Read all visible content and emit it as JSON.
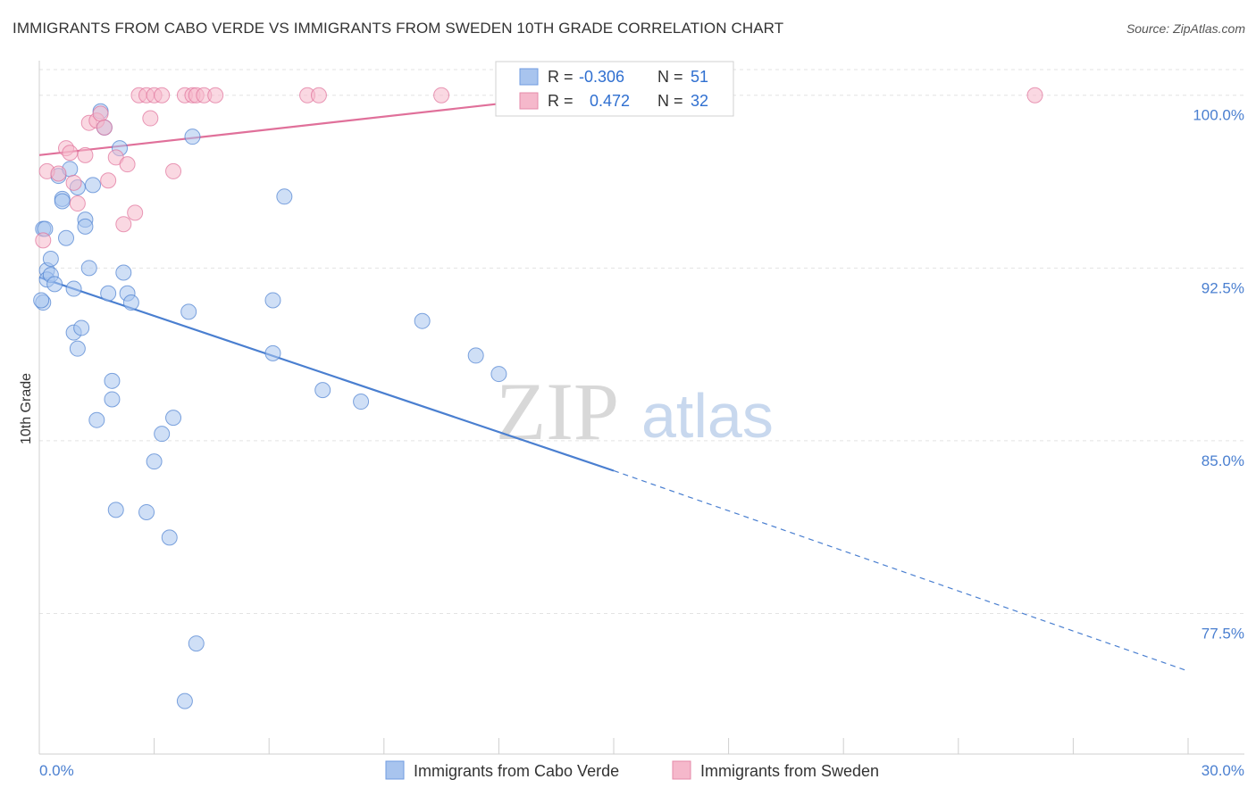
{
  "title": "IMMIGRANTS FROM CABO VERDE VS IMMIGRANTS FROM SWEDEN 10TH GRADE CORRELATION CHART",
  "source": "Source: ZipAtlas.com",
  "watermark": {
    "zip": "ZIP",
    "atlas": "atlas"
  },
  "legend_box": {
    "rows": [
      {
        "r_label": "R =",
        "r_value": "-0.306",
        "n_label": "N =",
        "n_value": "51",
        "color": "#a8c4ee"
      },
      {
        "r_label": "R =",
        "r_value": "0.472",
        "n_label": "N =",
        "n_value": "32",
        "color": "#f5b8cb"
      }
    ]
  },
  "bottom_legend": [
    {
      "label": "Immigrants from Cabo Verde",
      "color": "#a8c4ee"
    },
    {
      "label": "Immigrants from Sweden",
      "color": "#f5b8cb"
    }
  ],
  "chart_data": {
    "type": "scatter",
    "title": "IMMIGRANTS FROM CABO VERDE VS IMMIGRANTS FROM SWEDEN 10TH GRADE CORRELATION CHART",
    "xlabel": "",
    "ylabel": "10th Grade",
    "xlim": [
      0.0,
      30.0
    ],
    "ylim": [
      71.4,
      101.5
    ],
    "x_tick_labels": [
      "0.0%",
      "30.0%"
    ],
    "y_ticks": [
      77.5,
      85.0,
      92.5,
      100.0
    ],
    "y_tick_labels": [
      "77.5%",
      "85.0%",
      "92.5%",
      "100.0%"
    ],
    "grid": true,
    "legend_position": "top-center",
    "series": [
      {
        "name": "Immigrants from Cabo Verde",
        "color": "#4a7fd0",
        "fill": "#a8c4ee",
        "points": [
          [
            0.1,
            94.2
          ],
          [
            0.1,
            91.0
          ],
          [
            0.2,
            92.4
          ],
          [
            0.2,
            92.0
          ],
          [
            0.3,
            92.9
          ],
          [
            0.3,
            92.2
          ],
          [
            0.4,
            91.8
          ],
          [
            0.5,
            96.5
          ],
          [
            0.6,
            95.5
          ],
          [
            0.6,
            95.4
          ],
          [
            0.7,
            93.8
          ],
          [
            0.8,
            96.8
          ],
          [
            0.9,
            91.6
          ],
          [
            1.0,
            96.0
          ],
          [
            0.9,
            89.7
          ],
          [
            1.0,
            89.0
          ],
          [
            1.1,
            89.9
          ],
          [
            1.2,
            94.6
          ],
          [
            1.2,
            94.3
          ],
          [
            1.3,
            92.5
          ],
          [
            1.4,
            96.1
          ],
          [
            1.5,
            85.9
          ],
          [
            1.6,
            99.3
          ],
          [
            1.7,
            98.6
          ],
          [
            1.8,
            91.4
          ],
          [
            1.9,
            87.6
          ],
          [
            1.9,
            86.8
          ],
          [
            2.0,
            82.0
          ],
          [
            2.1,
            97.7
          ],
          [
            2.2,
            92.3
          ],
          [
            2.3,
            91.4
          ],
          [
            2.4,
            91.0
          ],
          [
            2.8,
            81.9
          ],
          [
            3.0,
            84.1
          ],
          [
            3.2,
            85.3
          ],
          [
            3.4,
            80.8
          ],
          [
            3.5,
            86.0
          ],
          [
            3.9,
            90.6
          ],
          [
            4.0,
            98.2
          ],
          [
            4.1,
            76.2
          ],
          [
            3.8,
            73.7
          ],
          [
            6.1,
            91.1
          ],
          [
            6.1,
            88.8
          ],
          [
            6.4,
            95.6
          ],
          [
            7.4,
            87.2
          ],
          [
            8.4,
            86.7
          ],
          [
            10.0,
            90.2
          ],
          [
            11.4,
            88.7
          ],
          [
            12.0,
            87.9
          ],
          [
            0.05,
            91.1
          ],
          [
            0.15,
            94.2
          ]
        ],
        "trend": {
          "x0": 0.0,
          "y0": 92.1,
          "x1": 15.0,
          "y1": 83.7,
          "dashed_to_x": 30.0,
          "dashed_to_y": 75.0
        }
      },
      {
        "name": "Immigrants from Sweden",
        "color": "#e0709a",
        "fill": "#f5b8cb",
        "points": [
          [
            0.1,
            93.7
          ],
          [
            0.2,
            96.7
          ],
          [
            0.5,
            96.6
          ],
          [
            0.7,
            97.7
          ],
          [
            0.8,
            97.5
          ],
          [
            0.9,
            96.2
          ],
          [
            1.0,
            95.3
          ],
          [
            1.2,
            97.4
          ],
          [
            1.3,
            98.8
          ],
          [
            1.5,
            98.9
          ],
          [
            1.6,
            99.2
          ],
          [
            1.7,
            98.6
          ],
          [
            1.8,
            96.3
          ],
          [
            2.0,
            97.3
          ],
          [
            2.2,
            94.4
          ],
          [
            2.3,
            97.0
          ],
          [
            2.5,
            94.9
          ],
          [
            2.6,
            100.0
          ],
          [
            2.8,
            100.0
          ],
          [
            2.9,
            99.0
          ],
          [
            3.0,
            100.0
          ],
          [
            3.2,
            100.0
          ],
          [
            3.5,
            96.7
          ],
          [
            3.8,
            100.0
          ],
          [
            4.0,
            100.0
          ],
          [
            4.1,
            100.0
          ],
          [
            4.3,
            100.0
          ],
          [
            4.6,
            100.0
          ],
          [
            7.0,
            100.0
          ],
          [
            7.3,
            100.0
          ],
          [
            10.5,
            100.0
          ],
          [
            26.0,
            100.0
          ]
        ],
        "trend": {
          "x0": 0.0,
          "y0": 97.4,
          "x1": 14.0,
          "y1": 100.0
        }
      }
    ]
  }
}
